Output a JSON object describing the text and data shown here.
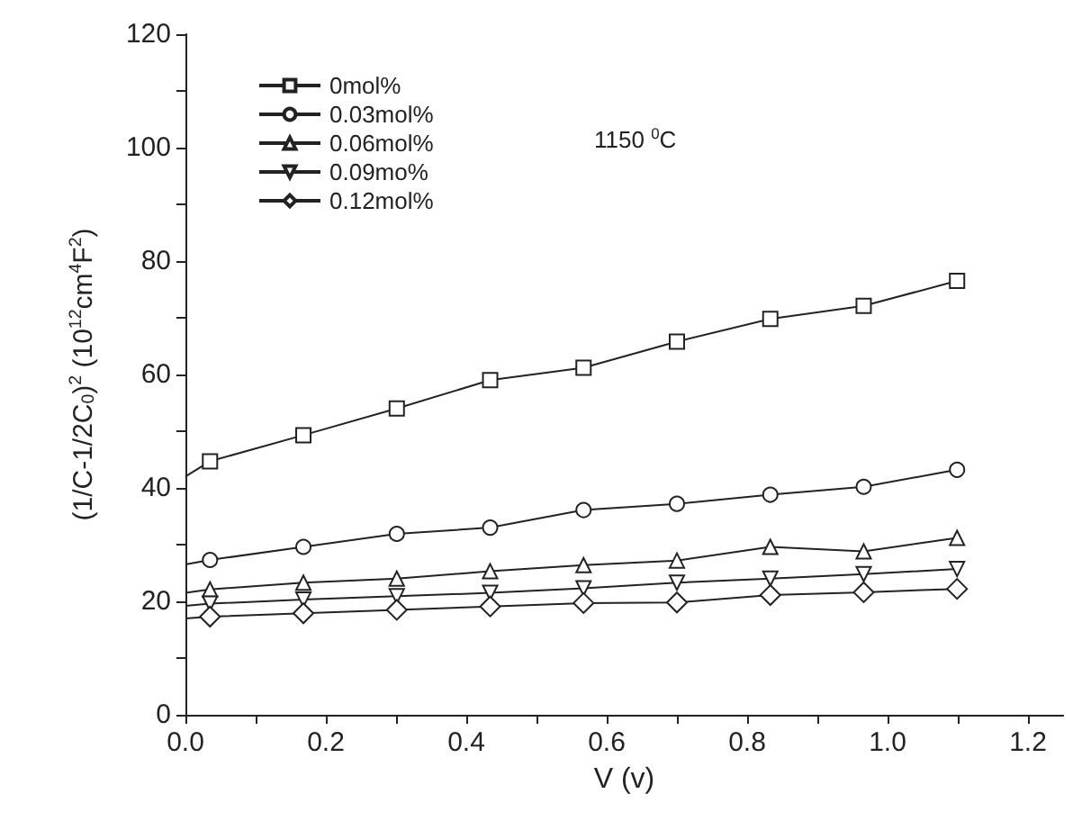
{
  "chart_data": {
    "type": "line",
    "xlabel": "V (v)",
    "ylabel": "(1/C-1/2C$_{0}$)$^{2}$ (10$^{12}$cm$^{4}$F$^{2}$)",
    "annotations": [
      "1150 $^{0}$C"
    ],
    "xlim": [
      0,
      1.25
    ],
    "xticks": [
      {
        "value": 0,
        "label": "0.0"
      },
      0.2,
      0.4,
      0.6,
      0.8,
      {
        "value": 1,
        "label": "1.0"
      },
      1.2
    ],
    "ylim": [
      0,
      120
    ],
    "yticks": [
      0,
      20,
      40,
      60,
      80,
      100,
      120
    ],
    "grid": false,
    "legend": "top left",
    "line_style": "solid",
    "series": [
      {
        "name": "0mol%",
        "color": "#222222",
        "marker": "square",
        "x": [
          0.035,
          0.168,
          0.301,
          0.434,
          0.567,
          0.7,
          0.833,
          0.966,
          1.099
        ],
        "values": [
          44.7,
          49.3,
          54,
          59,
          61.2,
          65.8,
          69.8,
          72.1,
          76.5
        ]
      },
      {
        "name": "0.03mol%",
        "color": "#222222",
        "marker": "circle",
        "x": [
          0.035,
          0.168,
          0.301,
          0.434,
          0.567,
          0.7,
          0.833,
          0.966,
          1.099
        ],
        "values": [
          27.3,
          29.6,
          31.9,
          33,
          36.1,
          37.2,
          38.8,
          40.2,
          43.2
        ]
      },
      {
        "name": "0.06mol%",
        "color": "#222222",
        "marker": "triangle",
        "x": [
          0.035,
          0.168,
          0.301,
          0.434,
          0.567,
          0.7,
          0.833,
          0.966,
          1.099
        ],
        "values": [
          22.1,
          23.3,
          24,
          25.3,
          26.4,
          27.2,
          29.6,
          28.8,
          31.2
        ]
      },
      {
        "name": "0.09mo%",
        "color": "#222222",
        "marker": "triangle-down",
        "x": [
          0.035,
          0.168,
          0.301,
          0.434,
          0.567,
          0.7,
          0.833,
          0.966,
          1.099
        ],
        "values": [
          19.6,
          20.3,
          20.9,
          21.5,
          22.3,
          23.3,
          24,
          24.8,
          25.7
        ]
      },
      {
        "name": "0.12mol%",
        "color": "#222222",
        "marker": "diamond",
        "x": [
          0.035,
          0.168,
          0.301,
          0.434,
          0.567,
          0.7,
          0.833,
          0.966,
          1.099
        ],
        "values": [
          17.3,
          17.9,
          18.5,
          19.1,
          19.7,
          19.8,
          21.1,
          21.6,
          22.2
        ]
      },
      {
        "color": "#222222",
        "marker": "none",
        "x": [
          0,
          0.035
        ],
        "values": [
          42,
          44.7
        ]
      },
      {
        "color": "#222222",
        "marker": "none",
        "x": [
          0,
          0.035
        ],
        "values": [
          26.5,
          27.3
        ]
      },
      {
        "color": "#222222",
        "marker": "none",
        "x": [
          0,
          0.035
        ],
        "values": [
          21.5,
          22.1
        ]
      },
      {
        "color": "#222222",
        "marker": "none",
        "x": [
          0,
          0.035
        ],
        "values": [
          19.2,
          19.6
        ]
      },
      {
        "color": "#222222",
        "marker": "none",
        "x": [
          0,
          0.035
        ],
        "values": [
          17,
          17.3
        ]
      }
    ]
  }
}
